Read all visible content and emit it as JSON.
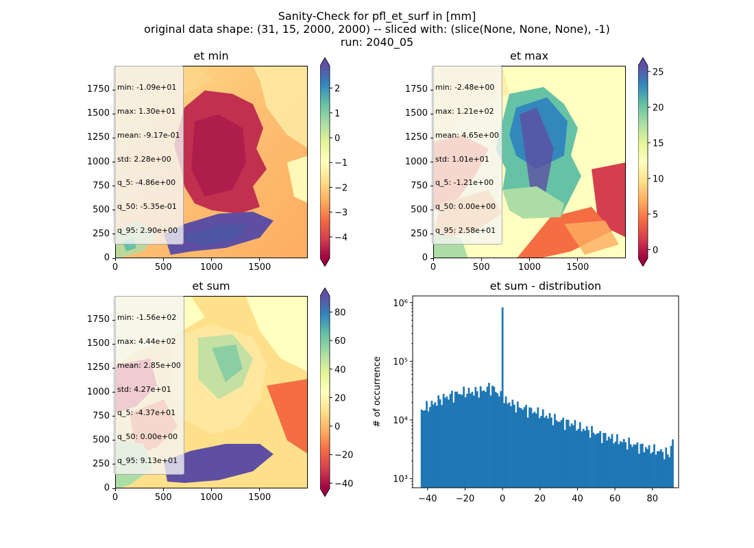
{
  "figure": {
    "suptitle_line1": "Sanity-Check for pfl_et_surf in [mm]",
    "suptitle_line2": "original data shape: (31, 15, 2000, 2000) -- sliced with: (slice(None, None, None), -1)",
    "suptitle_line3": "run: 2040_05"
  },
  "colors": {
    "spectral": [
      "#9e0142",
      "#d53e4f",
      "#f46d43",
      "#fdae61",
      "#fee08b",
      "#ffffbf",
      "#e6f598",
      "#abdda4",
      "#66c2a5",
      "#3288bd",
      "#5e4fa2"
    ],
    "hist_bar": "#1f77b4"
  },
  "chart_data": [
    {
      "type": "heatmap",
      "title": "et min",
      "colormap": "Spectral",
      "xlim": [
        0,
        2000
      ],
      "ylim": [
        0,
        2000
      ],
      "x_ticks": [
        "0",
        "500",
        "1000",
        "1500"
      ],
      "y_ticks": [
        "0",
        "250",
        "500",
        "750",
        "1000",
        "1250",
        "1500",
        "1750"
      ],
      "color_range": [
        -4.86,
        2.9
      ],
      "colorbar_ticks": [
        "2",
        "1",
        "0",
        "−1",
        "−2",
        "−3",
        "−4"
      ],
      "colorbar_tick_values": [
        2,
        1,
        0,
        -1,
        -2,
        -3,
        -4
      ],
      "colorbar_extend": "both",
      "stats": [
        "min: -1.09e+01",
        "max: 1.30e+01",
        "mean: -9.17e-01",
        "std: 2.28e+00",
        "q_5: -4.86e+00",
        "q_50: -5.35e-01",
        "q_95: 2.90e+00"
      ]
    },
    {
      "type": "heatmap",
      "title": "et max",
      "colormap": "Spectral",
      "xlim": [
        0,
        2000
      ],
      "ylim": [
        0,
        2000
      ],
      "x_ticks": [
        "0",
        "500",
        "1000",
        "1500"
      ],
      "y_ticks": [
        "0",
        "250",
        "500",
        "750",
        "1000",
        "1250",
        "1500",
        "1750"
      ],
      "color_range": [
        -1.21,
        25.8
      ],
      "colorbar_ticks": [
        "25",
        "20",
        "15",
        "10",
        "5",
        "0"
      ],
      "colorbar_tick_values": [
        25,
        20,
        15,
        10,
        5,
        0
      ],
      "colorbar_extend": "both",
      "stats": [
        "min: -2.48e+00",
        "max: 1.21e+02",
        "mean: 4.65e+00",
        "std: 1.01e+01",
        "q_5: -1.21e+00",
        "q_50: 0.00e+00",
        "q_95: 2.58e+01"
      ]
    },
    {
      "type": "heatmap",
      "title": "et sum",
      "colormap": "Spectral",
      "xlim": [
        0,
        2000
      ],
      "ylim": [
        0,
        2000
      ],
      "x_ticks": [
        "0",
        "500",
        "1000",
        "1500"
      ],
      "y_ticks": [
        "0",
        "250",
        "500",
        "750",
        "1000",
        "1250",
        "1500",
        "1750"
      ],
      "color_range": [
        -43.7,
        91.3
      ],
      "colorbar_ticks": [
        "80",
        "60",
        "40",
        "20",
        "0",
        "−20",
        "−40"
      ],
      "colorbar_tick_values": [
        80,
        60,
        40,
        20,
        0,
        -20,
        -40
      ],
      "colorbar_extend": "both",
      "stats": [
        "min: -1.56e+02",
        "max: 4.44e+02",
        "mean: 2.85e+00",
        "std: 4.27e+01",
        "q_5: -4.37e+01",
        "q_50: 0.00e+00",
        "q_95: 9.13e+01"
      ]
    },
    {
      "type": "bar",
      "title": "et sum - distribution",
      "ylabel": "# of occurrence",
      "yscale": "log",
      "xlim": [
        -48,
        94
      ],
      "ylim": [
        700,
        1300000
      ],
      "x_ticks": [
        "−40",
        "−20",
        "0",
        "20",
        "40",
        "60",
        "80"
      ],
      "x_tick_values": [
        -40,
        -20,
        0,
        20,
        40,
        60,
        80
      ],
      "y_ticks": [
        "10³",
        "10⁴",
        "10⁵",
        "10⁶"
      ],
      "y_tick_values": [
        1000,
        10000,
        100000,
        1000000
      ],
      "bin_range": [
        -43.7,
        91.3
      ],
      "bins": [
        {
          "x": -43,
          "y": 15000
        },
        {
          "x": -40,
          "y": 17000
        },
        {
          "x": -37,
          "y": 19000
        },
        {
          "x": -34,
          "y": 22000
        },
        {
          "x": -31,
          "y": 24000
        },
        {
          "x": -28,
          "y": 26000
        },
        {
          "x": -25,
          "y": 28000
        },
        {
          "x": -22,
          "y": 29000
        },
        {
          "x": -19,
          "y": 30000
        },
        {
          "x": -16,
          "y": 30000
        },
        {
          "x": -13,
          "y": 31000
        },
        {
          "x": -10,
          "y": 32000
        },
        {
          "x": -7,
          "y": 37000
        },
        {
          "x": -4,
          "y": 33000
        },
        {
          "x": -1,
          "y": 25000
        },
        {
          "x": 0,
          "y": 830000
        },
        {
          "x": 2,
          "y": 21000
        },
        {
          "x": 5,
          "y": 19000
        },
        {
          "x": 8,
          "y": 17000
        },
        {
          "x": 11,
          "y": 16000
        },
        {
          "x": 14,
          "y": 15000
        },
        {
          "x": 17,
          "y": 14000
        },
        {
          "x": 20,
          "y": 13000
        },
        {
          "x": 23,
          "y": 12000
        },
        {
          "x": 26,
          "y": 11000
        },
        {
          "x": 29,
          "y": 10000
        },
        {
          "x": 32,
          "y": 9500
        },
        {
          "x": 35,
          "y": 9000
        },
        {
          "x": 38,
          "y": 8500
        },
        {
          "x": 41,
          "y": 7500
        },
        {
          "x": 44,
          "y": 7000
        },
        {
          "x": 47,
          "y": 6500
        },
        {
          "x": 50,
          "y": 6000
        },
        {
          "x": 53,
          "y": 5500
        },
        {
          "x": 56,
          "y": 5200
        },
        {
          "x": 59,
          "y": 4800
        },
        {
          "x": 62,
          "y": 4500
        },
        {
          "x": 65,
          "y": 4200
        },
        {
          "x": 68,
          "y": 4000
        },
        {
          "x": 71,
          "y": 3700
        },
        {
          "x": 74,
          "y": 3500
        },
        {
          "x": 77,
          "y": 3300
        },
        {
          "x": 80,
          "y": 3100
        },
        {
          "x": 83,
          "y": 3000
        },
        {
          "x": 86,
          "y": 2800
        },
        {
          "x": 89,
          "y": 2600
        },
        {
          "x": 91,
          "y": 4800
        }
      ]
    }
  ]
}
